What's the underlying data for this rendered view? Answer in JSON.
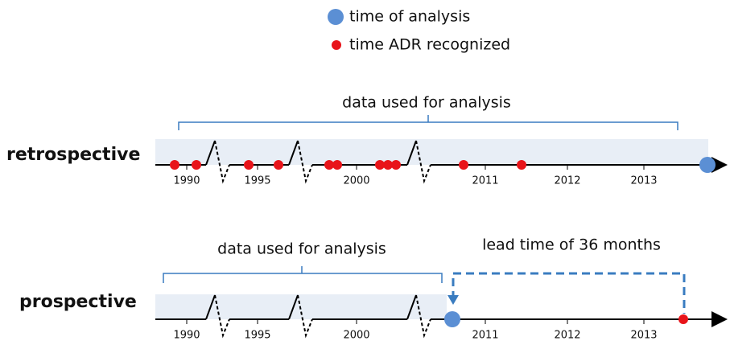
{
  "legend": [
    {
      "label": "time of analysis"
    },
    {
      "label": "time ADR recognized"
    }
  ],
  "timelines": [
    {
      "label": "retrospective",
      "bracket_label": "data used for analysis",
      "ticks": [
        "1990",
        "1995",
        "2000",
        "2011",
        "2012",
        "2013"
      ]
    },
    {
      "label": "prospective",
      "bracket_label": "data used for analysis",
      "lead_label": "lead time of 36 months",
      "ticks": [
        "1990",
        "1995",
        "2000",
        "2011",
        "2012",
        "2013"
      ]
    }
  ]
}
